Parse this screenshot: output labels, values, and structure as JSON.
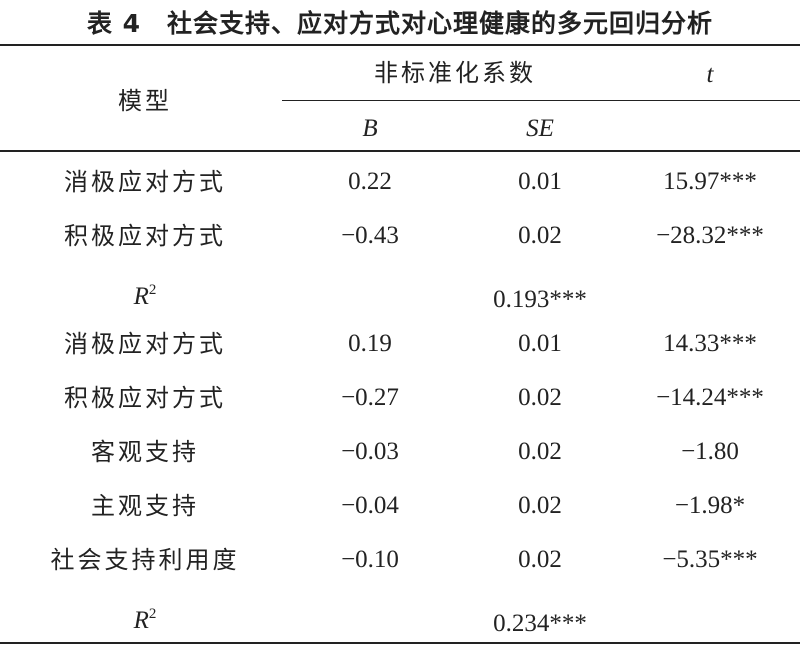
{
  "title": "表 4　社会支持、应对方式对心理健康的多元回归分析",
  "header": {
    "model": "模型",
    "group": "非标准化系数",
    "b": "B",
    "se": "SE",
    "t": "t"
  },
  "rows": [
    {
      "label": "消极应对方式",
      "b": "0.22",
      "se": "0.01",
      "t": "15.97***"
    },
    {
      "label": "积极应对方式",
      "b": "−0.43",
      "se": "0.02",
      "t": "−28.32***"
    },
    {
      "r": "R",
      "sup": "2",
      "value": "0.193***"
    },
    {
      "label": "消极应对方式",
      "b": "0.19",
      "se": "0.01",
      "t": "14.33***"
    },
    {
      "label": "积极应对方式",
      "b": "−0.27",
      "se": "0.02",
      "t": "−14.24***"
    },
    {
      "label": "客观支持",
      "b": "−0.03",
      "se": "0.02",
      "t": "−1.80"
    },
    {
      "label": "主观支持",
      "b": "−0.04",
      "se": "0.02",
      "t": "−1.98*"
    },
    {
      "label": "社会支持利用度",
      "b": "−0.10",
      "se": "0.02",
      "t": "−5.35***"
    },
    {
      "r": "R",
      "sup": "2",
      "value": "0.234***"
    }
  ]
}
